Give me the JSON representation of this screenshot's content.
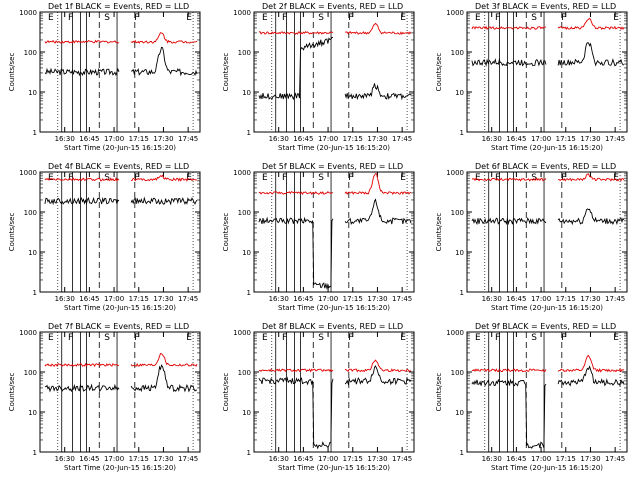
{
  "chart_data": [
    {
      "id": "1f",
      "title": "Det 1f BLACK = Events, RED = LLD",
      "type": "line",
      "xlabel": "Start Time (20-Jun-15 16:15:20)",
      "ylabel": "Counts/sec",
      "y_scale": "log",
      "ylim": [
        1,
        1000
      ],
      "x_tick_labels": [
        "16:30",
        "16:45",
        "17:00",
        "17:15",
        "17:30",
        "17:45"
      ],
      "y_tick_labels": [
        "1",
        "10",
        "100",
        "1000"
      ],
      "region_labels": [
        "E",
        "F",
        "S",
        "F",
        "E"
      ],
      "series": [
        {
          "color": "#000000",
          "base": 32,
          "flare_peak": 120,
          "flare_time": 17.48,
          "dropout": false
        },
        {
          "color": "#e00000",
          "base": 180,
          "flare_peak": 300,
          "flare_time": 17.48,
          "dropout": false
        }
      ]
    },
    {
      "id": "2f",
      "title": "Det 2f BLACK = Events, RED = LLD",
      "type": "line",
      "xlabel": "Start Time (20-Jun-15 16:15:20)",
      "ylabel": "Counts/sec",
      "y_scale": "log",
      "ylim": [
        1,
        1000
      ],
      "x_tick_labels": [
        "16:30",
        "16:45",
        "17:00",
        "17:15",
        "17:30",
        "17:45"
      ],
      "y_tick_labels": [
        "1",
        "10",
        "100",
        "1000"
      ],
      "region_labels": [
        "E",
        "F",
        "S",
        "F",
        "E"
      ],
      "series": [
        {
          "color": "#000000",
          "base": 8,
          "flare_peak": 15,
          "flare_time": 17.48,
          "dropout": false,
          "high_level": 200
        },
        {
          "color": "#e00000",
          "base": 300,
          "flare_peak": 500,
          "flare_time": 17.48,
          "dropout": false
        }
      ]
    },
    {
      "id": "3f",
      "title": "Det 3f BLACK = Events, RED = LLD",
      "type": "line",
      "xlabel": "Start Time (20-Jun-15 16:15:20)",
      "ylabel": "Counts/sec",
      "y_scale": "log",
      "ylim": [
        1,
        1000
      ],
      "x_tick_labels": [
        "16:30",
        "16:45",
        "17:00",
        "17:15",
        "17:30",
        "17:45"
      ],
      "y_tick_labels": [
        "1",
        "10",
        "100",
        "1000"
      ],
      "region_labels": [
        "E",
        "F",
        "S",
        "F",
        "E"
      ],
      "series": [
        {
          "color": "#000000",
          "base": 55,
          "flare_peak": 180,
          "flare_time": 17.48,
          "dropout": false
        },
        {
          "color": "#e00000",
          "base": 400,
          "flare_peak": 700,
          "flare_time": 17.48,
          "dropout": false
        }
      ]
    },
    {
      "id": "4f",
      "title": "Det 4f BLACK = Events, RED = LLD",
      "type": "line",
      "xlabel": "Start Time (20-Jun-15 16:15:20)",
      "ylabel": "Counts/sec",
      "y_scale": "log",
      "ylim": [
        1,
        1000
      ],
      "x_tick_labels": [
        "16:30",
        "16:45",
        "17:00",
        "17:15",
        "17:30",
        "17:45"
      ],
      "y_tick_labels": [
        "1",
        "10",
        "100",
        "1000"
      ],
      "region_labels": [
        "E",
        "F",
        "S",
        "F",
        "E"
      ],
      "series": [
        {
          "color": "#000000",
          "base": 190,
          "flare_peak": 190,
          "flare_time": 17.48,
          "dropout": false
        },
        {
          "color": "#e00000",
          "base": 650,
          "flare_peak": 800,
          "flare_time": 17.48,
          "dropout": false
        }
      ]
    },
    {
      "id": "5f",
      "title": "Det 5f BLACK = Events, RED = LLD",
      "type": "line",
      "xlabel": "Start Time (20-Jun-15 16:15:20)",
      "ylabel": "Counts/sec",
      "y_scale": "log",
      "ylim": [
        1,
        1000
      ],
      "x_tick_labels": [
        "16:30",
        "16:45",
        "17:00",
        "17:15",
        "17:30",
        "17:45"
      ],
      "y_tick_labels": [
        "1",
        "10",
        "100",
        "1000"
      ],
      "region_labels": [
        "E",
        "F",
        "S",
        "F",
        "E"
      ],
      "series": [
        {
          "color": "#000000",
          "base": 60,
          "flare_peak": 180,
          "flare_time": 17.48,
          "dropout": true
        },
        {
          "color": "#e00000",
          "base": 300,
          "flare_peak": 900,
          "flare_time": 17.48,
          "dropout": false
        }
      ]
    },
    {
      "id": "6f",
      "title": "Det 6f BLACK = Events, RED = LLD",
      "type": "line",
      "xlabel": "Start Time (20-Jun-15 16:15:20)",
      "ylabel": "Counts/sec",
      "y_scale": "log",
      "ylim": [
        1,
        1000
      ],
      "x_tick_labels": [
        "16:30",
        "16:45",
        "17:00",
        "17:15",
        "17:30",
        "17:45"
      ],
      "y_tick_labels": [
        "1",
        "10",
        "100",
        "1000"
      ],
      "region_labels": [
        "E",
        "F",
        "S",
        "F",
        "E"
      ],
      "series": [
        {
          "color": "#000000",
          "base": 60,
          "flare_peak": 130,
          "flare_time": 17.48,
          "dropout": false
        },
        {
          "color": "#e00000",
          "base": 650,
          "flare_peak": 850,
          "flare_time": 17.48,
          "dropout": false
        }
      ]
    },
    {
      "id": "7f",
      "title": "Det 7f BLACK = Events, RED = LLD",
      "type": "line",
      "xlabel": "Start Time (20-Jun-15 16:15:20)",
      "ylabel": "Counts/sec",
      "y_scale": "log",
      "ylim": [
        1,
        1000
      ],
      "x_tick_labels": [
        "16:30",
        "16:45",
        "17:00",
        "17:15",
        "17:30",
        "17:45"
      ],
      "y_tick_labels": [
        "1",
        "10",
        "100",
        "1000"
      ],
      "region_labels": [
        "E",
        "F",
        "S",
        "F",
        "E"
      ],
      "series": [
        {
          "color": "#000000",
          "base": 40,
          "flare_peak": 150,
          "flare_time": 17.48,
          "dropout": false
        },
        {
          "color": "#e00000",
          "base": 150,
          "flare_peak": 300,
          "flare_time": 17.48,
          "dropout": false
        }
      ]
    },
    {
      "id": "8f",
      "title": "Det 8f BLACK = Events, RED = LLD",
      "type": "line",
      "xlabel": "Start Time (20-Jun-15 16:15:20)",
      "ylabel": "Counts/sec",
      "y_scale": "log",
      "ylim": [
        1,
        1000
      ],
      "x_tick_labels": [
        "16:30",
        "16:45",
        "17:00",
        "17:15",
        "17:30",
        "17:45"
      ],
      "y_tick_labels": [
        "1",
        "10",
        "100",
        "1000"
      ],
      "region_labels": [
        "E",
        "F",
        "S",
        "F",
        "E"
      ],
      "series": [
        {
          "color": "#000000",
          "base": 60,
          "flare_peak": 130,
          "flare_time": 17.48,
          "dropout": true
        },
        {
          "color": "#e00000",
          "base": 110,
          "flare_peak": 200,
          "flare_time": 17.48,
          "dropout": false
        }
      ]
    },
    {
      "id": "9f",
      "title": "Det 9f BLACK = Events, RED = LLD",
      "type": "line",
      "xlabel": "Start Time (20-Jun-15 16:15:20)",
      "ylabel": "Counts/sec",
      "y_scale": "log",
      "ylim": [
        1,
        1000
      ],
      "x_tick_labels": [
        "16:30",
        "16:45",
        "17:00",
        "17:15",
        "17:30",
        "17:45"
      ],
      "y_tick_labels": [
        "1",
        "10",
        "100",
        "1000"
      ],
      "region_labels": [
        "E",
        "F",
        "S",
        "F",
        "E"
      ],
      "series": [
        {
          "color": "#000000",
          "base": 55,
          "flare_peak": 140,
          "flare_time": 17.48,
          "dropout": true
        },
        {
          "color": "#e00000",
          "base": 110,
          "flare_peak": 250,
          "flare_time": 17.48,
          "dropout": false
        }
      ]
    }
  ]
}
